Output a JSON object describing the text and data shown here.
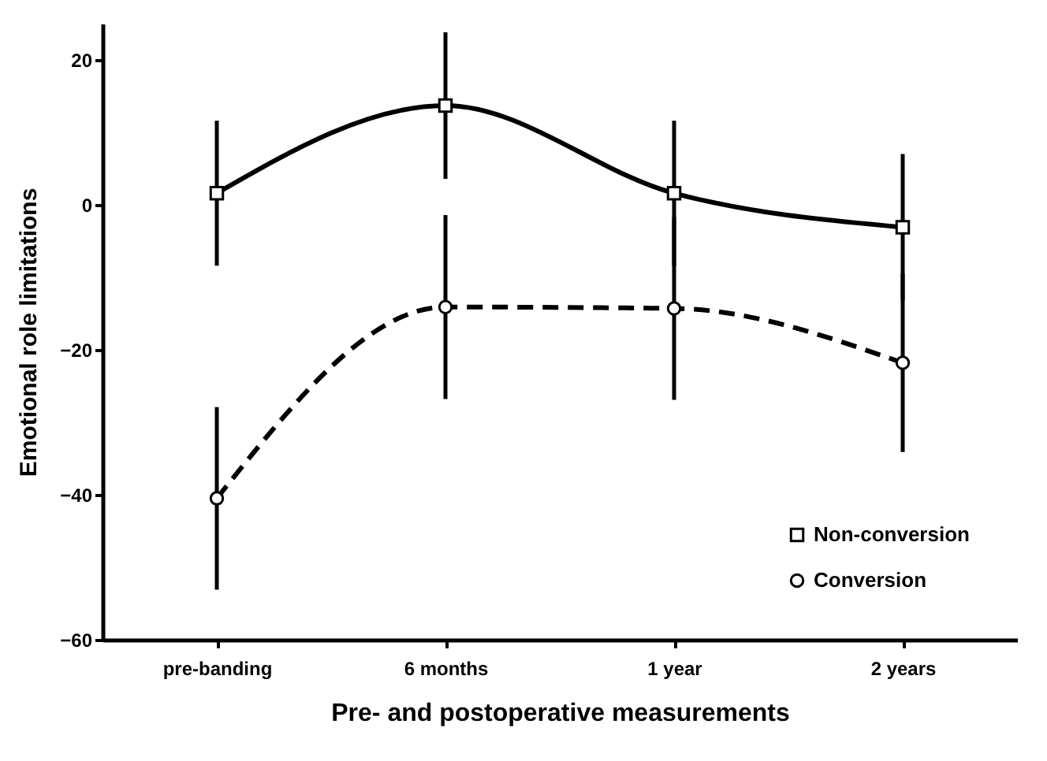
{
  "chart_data": {
    "type": "line",
    "xlabel": "Pre- and postoperative measurements",
    "ylabel": "Emotional role limitations",
    "categories": [
      "pre-banding",
      "6 months",
      "1 year",
      "2 years"
    ],
    "series": [
      {
        "name": "Non-conversion",
        "color": "#000000",
        "marker": "square",
        "line_style": "solid",
        "values": [
          1.6,
          13.7,
          1.6,
          -3.1
        ],
        "errors": [
          10,
          10.1,
          10,
          10.1
        ]
      },
      {
        "name": "Conversion",
        "color": "#000000",
        "marker": "circle",
        "line_style": "dashed",
        "values": [
          -40.5,
          -14.1,
          -14.3,
          -21.8
        ],
        "errors": [
          12.6,
          12.7,
          12.6,
          12.3
        ]
      }
    ],
    "ylim": [
      -60,
      25
    ],
    "yticks": [
      -60,
      -40,
      -20,
      0,
      20
    ],
    "grid": false,
    "legend": "bottom right"
  }
}
